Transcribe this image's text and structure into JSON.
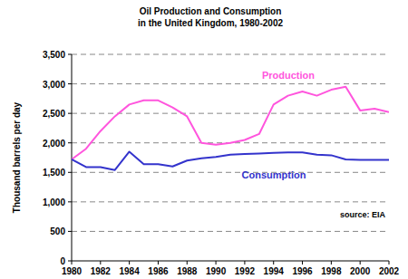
{
  "chart_data": {
    "type": "line",
    "title": "Oil Production and Consumption",
    "subtitle": "in the United Kingdom, 1980-2002",
    "y_label": "Thousand barrels per day",
    "annotations": [
      "source: EIA"
    ],
    "x": [
      1980,
      1981,
      1982,
      1983,
      1984,
      1985,
      1986,
      1987,
      1988,
      1989,
      1990,
      1991,
      1992,
      1993,
      1994,
      1995,
      1996,
      1997,
      1998,
      1999,
      2000,
      2001,
      2002
    ],
    "series": [
      {
        "name": "Production",
        "color": "#ff55dd",
        "values": [
          1720,
          1900,
          2200,
          2450,
          2650,
          2720,
          2720,
          2600,
          2450,
          2000,
          1970,
          2000,
          2050,
          2150,
          2650,
          2800,
          2870,
          2800,
          2900,
          2950,
          2550,
          2580,
          2520
        ]
      },
      {
        "name": "Consumption",
        "color": "#3333cc",
        "values": [
          1720,
          1590,
          1590,
          1540,
          1850,
          1640,
          1640,
          1600,
          1700,
          1740,
          1760,
          1800,
          1810,
          1820,
          1830,
          1840,
          1840,
          1800,
          1790,
          1720,
          1710,
          1710,
          1710
        ]
      }
    ],
    "xlim": [
      1980,
      2002
    ],
    "xticks": [
      1980,
      1982,
      1984,
      1986,
      1988,
      1990,
      1992,
      1994,
      1996,
      1998,
      2000,
      2002
    ],
    "ylim": [
      0,
      3500
    ],
    "yticks": [
      0,
      500,
      {
        "value": 1000,
        "label": "1,000"
      },
      {
        "value": 1500,
        "label": "1,500"
      },
      {
        "value": 2000,
        "label": "2,000"
      },
      {
        "value": 2500,
        "label": "2,500"
      },
      {
        "value": 3000,
        "label": "3,000"
      },
      {
        "value": 3500,
        "label": "3,500"
      }
    ],
    "grid": true
  }
}
